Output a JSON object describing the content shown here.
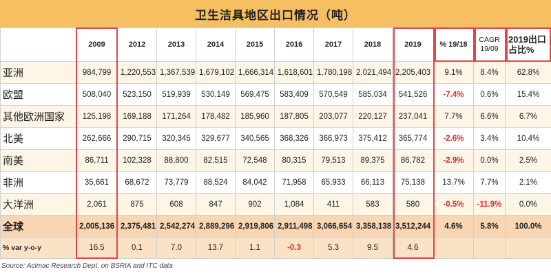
{
  "chart_data": {
    "type": "table",
    "title": "卫生洁具地区出口情况（吨）",
    "columns": [
      "",
      "2009",
      "2012",
      "2013",
      "2014",
      "2015",
      "2016",
      "2017",
      "2018",
      "2019",
      "% 19/18",
      "CAGR 19/09",
      "2019出口占比%"
    ],
    "rows": [
      {
        "label": "亚洲",
        "cells": [
          "984,799",
          "1,220,553",
          "1,367,539",
          "1,679,102",
          "1,666,314",
          "1,618,601",
          "1,780,198",
          "2,021,494",
          "2,205,403",
          "9.1%",
          "8.4%",
          "62.8%"
        ]
      },
      {
        "label": "欧盟",
        "cells": [
          "508,040",
          "523,150",
          "519,939",
          "530,149",
          "569,475",
          "583,409",
          "570,549",
          "585,034",
          "541,526",
          "-7.4%",
          "0.6%",
          "15.4%"
        ]
      },
      {
        "label": "其他欧洲国家",
        "cells": [
          "125,198",
          "169,188",
          "171,264",
          "178,482",
          "185,960",
          "187,805",
          "203,077",
          "220,127",
          "237,041",
          "7.7%",
          "6.6%",
          "6.7%"
        ]
      },
      {
        "label": "北美",
        "cells": [
          "262,666",
          "290,715",
          "320,345",
          "329,677",
          "340,565",
          "368,326",
          "366,973",
          "375,412",
          "365,774",
          "-2.6%",
          "3.4%",
          "10.4%"
        ]
      },
      {
        "label": "南美",
        "cells": [
          "86,711",
          "102,328",
          "88,800",
          "82,515",
          "72,548",
          "80,315",
          "79,513",
          "89,375",
          "86,782",
          "-2.9%",
          "0.0%",
          "2.5%"
        ]
      },
      {
        "label": "非洲",
        "cells": [
          "35,661",
          "68,672",
          "73,779",
          "88,524",
          "84,042",
          "71,958",
          "65,933",
          "66,113",
          "75,138",
          "13.7%",
          "7.7%",
          "2.1%"
        ]
      },
      {
        "label": "大洋洲",
        "cells": [
          "2,061",
          "875",
          "608",
          "847",
          "902",
          "1,084",
          "411",
          "583",
          "580",
          "-0.5%",
          "-11.9%",
          "0.0%"
        ]
      }
    ],
    "total": {
      "label": "全球",
      "cells": [
        "2,005,136",
        "2,375,481",
        "2,542,274",
        "2,889,296",
        "2,919,806",
        "2,911,498",
        "3,066,654",
        "3,358,138",
        "3,512,244",
        "4.6%",
        "5.8%",
        "100.0%"
      ]
    },
    "yoy": {
      "label": "% var y-o-y",
      "cells": [
        "16.5",
        "0.1",
        "7.0",
        "13.7",
        "1.1",
        "-0.3",
        "5.3",
        "9.5",
        "4.6",
        "",
        "",
        ""
      ]
    },
    "source": "Source: Acimac Research Dept. on BSRIA and ITC data",
    "highlight_color": "#e8262c"
  }
}
